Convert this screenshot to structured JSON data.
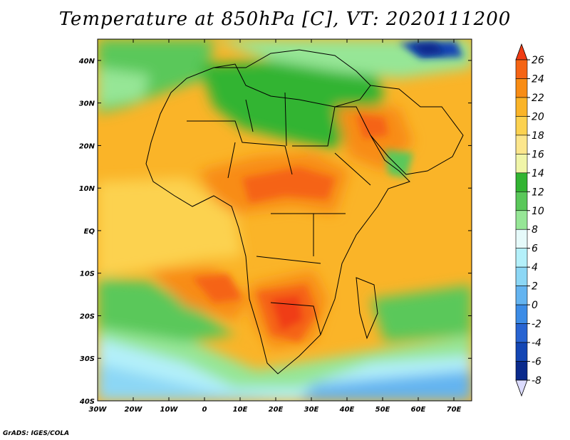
{
  "title": "Temperature at 850hPa [C], VT: 2020111200",
  "footer": "GrADS: IGES/COLA",
  "map": {
    "lon_range": [
      -30,
      75
    ],
    "lat_range": [
      -40,
      45
    ],
    "lon_ticks": [
      {
        "lon": -30,
        "label": "30W"
      },
      {
        "lon": -20,
        "label": "20W"
      },
      {
        "lon": -10,
        "label": "10W"
      },
      {
        "lon": 0,
        "label": "0"
      },
      {
        "lon": 10,
        "label": "10E"
      },
      {
        "lon": 20,
        "label": "20E"
      },
      {
        "lon": 30,
        "label": "30E"
      },
      {
        "lon": 40,
        "label": "40E"
      },
      {
        "lon": 50,
        "label": "50E"
      },
      {
        "lon": 60,
        "label": "60E"
      },
      {
        "lon": 70,
        "label": "70E"
      }
    ],
    "lat_ticks": [
      {
        "lat": 40,
        "label": "40N"
      },
      {
        "lat": 30,
        "label": "30N"
      },
      {
        "lat": 20,
        "label": "20N"
      },
      {
        "lat": 10,
        "label": "10N"
      },
      {
        "lat": 0,
        "label": "EQ"
      },
      {
        "lat": -10,
        "label": "10S"
      },
      {
        "lat": -20,
        "label": "20S"
      },
      {
        "lat": -30,
        "label": "30S"
      },
      {
        "lat": -40,
        "label": "40S"
      }
    ]
  },
  "colorbar": {
    "levels": [
      "26",
      "24",
      "22",
      "20",
      "18",
      "16",
      "14",
      "12",
      "10",
      "8",
      "6",
      "4",
      "2",
      "0",
      "-2",
      "-4",
      "-6",
      "-8"
    ],
    "colors": [
      "#f03c14",
      "#f56414",
      "#f88c14",
      "#fab428",
      "#fcd250",
      "#fce68c",
      "#f0f5a8",
      "#32b432",
      "#5ac85a",
      "#96e696",
      "#e6fafa",
      "#b4f0fa",
      "#8cd7f5",
      "#64b4f0",
      "#3c8ce6",
      "#2864d2",
      "#1446b4",
      "#0a2a8c",
      "#dcdcff"
    ]
  }
}
